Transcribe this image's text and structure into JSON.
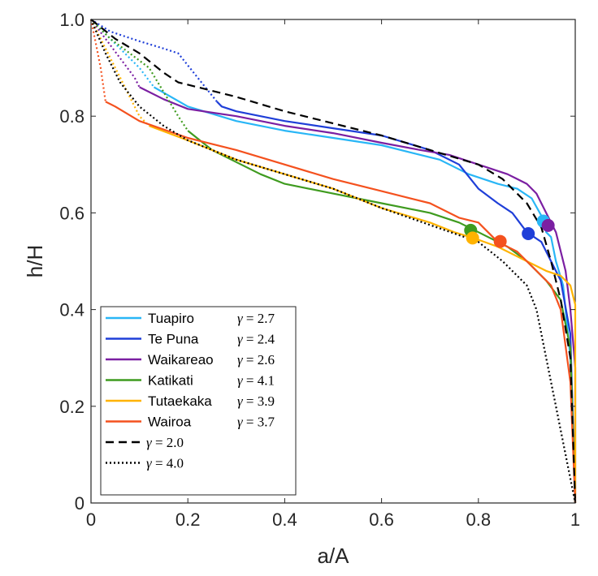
{
  "chart_data": {
    "type": "line",
    "xlabel": "a/A",
    "ylabel": "h/H",
    "xlim": [
      0,
      1
    ],
    "ylim": [
      0,
      1
    ],
    "xticks": [
      "0",
      "0.2",
      "0.4",
      "0.6",
      "0.8",
      "1"
    ],
    "yticks": [
      "0",
      "0.2",
      "0.4",
      "0.6",
      "0.8",
      "1.0"
    ],
    "grid": false,
    "legend_position": "bottom-left",
    "series": [
      {
        "name": "Tuapiro",
        "gamma_label": "= 2.7",
        "color": "#29b6f6",
        "style": "solid",
        "dotted": [
          [
            0,
            1
          ],
          [
            0.03,
            0.97
          ],
          [
            0.07,
            0.93
          ],
          [
            0.1,
            0.9
          ],
          [
            0.13,
            0.86
          ]
        ],
        "solid": [
          [
            0.13,
            0.86
          ],
          [
            0.2,
            0.82
          ],
          [
            0.3,
            0.79
          ],
          [
            0.4,
            0.77
          ],
          [
            0.5,
            0.755
          ],
          [
            0.6,
            0.74
          ],
          [
            0.68,
            0.72
          ],
          [
            0.72,
            0.71
          ],
          [
            0.78,
            0.68
          ],
          [
            0.84,
            0.66
          ],
          [
            0.88,
            0.65
          ],
          [
            0.91,
            0.63
          ],
          [
            0.935,
            0.585
          ],
          [
            0.94,
            0.56
          ],
          [
            0.95,
            0.55
          ],
          [
            0.96,
            0.5
          ],
          [
            0.975,
            0.45
          ],
          [
            0.99,
            0.3
          ],
          [
            1,
            0
          ]
        ],
        "marker": [
          0.934,
          0.583
        ]
      },
      {
        "name": "Te Puna",
        "gamma_label": "= 2.4",
        "color": "#1f3fd8",
        "style": "solid",
        "dotted": [
          [
            0,
            1
          ],
          [
            0.04,
            0.975
          ],
          [
            0.1,
            0.955
          ],
          [
            0.15,
            0.94
          ],
          [
            0.18,
            0.93
          ],
          [
            0.22,
            0.88
          ],
          [
            0.26,
            0.83
          ]
        ],
        "solid": [
          [
            0.26,
            0.83
          ],
          [
            0.27,
            0.82
          ],
          [
            0.3,
            0.81
          ],
          [
            0.4,
            0.79
          ],
          [
            0.5,
            0.775
          ],
          [
            0.6,
            0.76
          ],
          [
            0.7,
            0.73
          ],
          [
            0.76,
            0.7
          ],
          [
            0.8,
            0.65
          ],
          [
            0.84,
            0.62
          ],
          [
            0.87,
            0.6
          ],
          [
            0.9,
            0.56
          ],
          [
            0.93,
            0.54
          ],
          [
            0.95,
            0.5
          ],
          [
            0.97,
            0.46
          ],
          [
            0.99,
            0.35
          ],
          [
            1,
            0
          ]
        ],
        "marker": [
          0.903,
          0.557
        ]
      },
      {
        "name": "Waikareao",
        "gamma_label": "= 2.6",
        "color": "#7b1fa2",
        "style": "solid",
        "dotted": [
          [
            0,
            1
          ],
          [
            0.03,
            0.96
          ],
          [
            0.06,
            0.92
          ],
          [
            0.09,
            0.88
          ],
          [
            0.1,
            0.86
          ]
        ],
        "solid": [
          [
            0.1,
            0.86
          ],
          [
            0.15,
            0.835
          ],
          [
            0.2,
            0.815
          ],
          [
            0.3,
            0.8
          ],
          [
            0.4,
            0.78
          ],
          [
            0.5,
            0.765
          ],
          [
            0.6,
            0.745
          ],
          [
            0.68,
            0.73
          ],
          [
            0.74,
            0.72
          ],
          [
            0.8,
            0.7
          ],
          [
            0.86,
            0.68
          ],
          [
            0.9,
            0.66
          ],
          [
            0.92,
            0.64
          ],
          [
            0.94,
            0.6
          ],
          [
            0.96,
            0.56
          ],
          [
            0.98,
            0.48
          ],
          [
            0.99,
            0.4
          ],
          [
            1,
            0.28
          ],
          [
            1,
            0
          ]
        ],
        "marker": [
          0.944,
          0.574
        ]
      },
      {
        "name": "Katikati",
        "gamma_label": "= 4.1",
        "color": "#3f9b1f",
        "style": "solid",
        "dotted": [
          [
            0,
            1
          ],
          [
            0.04,
            0.96
          ],
          [
            0.08,
            0.93
          ],
          [
            0.12,
            0.9
          ],
          [
            0.15,
            0.85
          ],
          [
            0.18,
            0.8
          ],
          [
            0.2,
            0.77
          ]
        ],
        "solid": [
          [
            0.2,
            0.77
          ],
          [
            0.25,
            0.73
          ],
          [
            0.3,
            0.705
          ],
          [
            0.35,
            0.68
          ],
          [
            0.4,
            0.66
          ],
          [
            0.5,
            0.64
          ],
          [
            0.6,
            0.62
          ],
          [
            0.7,
            0.6
          ],
          [
            0.76,
            0.58
          ],
          [
            0.8,
            0.56
          ],
          [
            0.86,
            0.53
          ],
          [
            0.9,
            0.5
          ],
          [
            0.94,
            0.46
          ],
          [
            0.97,
            0.42
          ],
          [
            0.99,
            0.32
          ],
          [
            1,
            0
          ]
        ],
        "marker": [
          0.784,
          0.564
        ]
      },
      {
        "name": "Tutaekaka",
        "gamma_label": "= 3.9",
        "color": "#ffb300",
        "style": "solid",
        "dotted": [
          [
            0,
            1
          ],
          [
            0.02,
            0.96
          ],
          [
            0.04,
            0.92
          ],
          [
            0.06,
            0.88
          ],
          [
            0.08,
            0.84
          ],
          [
            0.1,
            0.8
          ],
          [
            0.12,
            0.78
          ]
        ],
        "solid": [
          [
            0.12,
            0.78
          ],
          [
            0.2,
            0.75
          ],
          [
            0.3,
            0.71
          ],
          [
            0.4,
            0.68
          ],
          [
            0.5,
            0.65
          ],
          [
            0.6,
            0.61
          ],
          [
            0.7,
            0.58
          ],
          [
            0.75,
            0.56
          ],
          [
            0.79,
            0.548
          ],
          [
            0.84,
            0.53
          ],
          [
            0.9,
            0.5
          ],
          [
            0.94,
            0.48
          ],
          [
            0.97,
            0.47
          ],
          [
            0.99,
            0.45
          ],
          [
            1,
            0.41
          ],
          [
            1,
            0
          ]
        ],
        "marker": [
          0.788,
          0.548
        ]
      },
      {
        "name": "Wairoa",
        "gamma_label": "= 3.7",
        "color": "#f4511e",
        "style": "solid",
        "dotted": [
          [
            0,
            1
          ],
          [
            0.01,
            0.95
          ],
          [
            0.02,
            0.9
          ],
          [
            0.03,
            0.83
          ]
        ],
        "solid": [
          [
            0.03,
            0.83
          ],
          [
            0.05,
            0.82
          ],
          [
            0.1,
            0.79
          ],
          [
            0.2,
            0.755
          ],
          [
            0.3,
            0.73
          ],
          [
            0.4,
            0.7
          ],
          [
            0.5,
            0.67
          ],
          [
            0.6,
            0.645
          ],
          [
            0.7,
            0.62
          ],
          [
            0.76,
            0.59
          ],
          [
            0.8,
            0.58
          ],
          [
            0.84,
            0.54
          ],
          [
            0.88,
            0.52
          ],
          [
            0.92,
            0.48
          ],
          [
            0.95,
            0.45
          ],
          [
            0.97,
            0.4
          ],
          [
            0.99,
            0.25
          ],
          [
            1,
            0
          ]
        ],
        "marker": [
          0.845,
          0.541
        ]
      },
      {
        "name": "= 2.0",
        "gamma_label": "",
        "color": "#000000",
        "style": "dashed",
        "solid": [
          [
            0,
            1
          ],
          [
            0.05,
            0.96
          ],
          [
            0.1,
            0.93
          ],
          [
            0.15,
            0.89
          ],
          [
            0.18,
            0.87
          ],
          [
            0.22,
            0.86
          ],
          [
            0.3,
            0.84
          ],
          [
            0.4,
            0.81
          ],
          [
            0.5,
            0.785
          ],
          [
            0.6,
            0.76
          ],
          [
            0.7,
            0.73
          ],
          [
            0.8,
            0.7
          ],
          [
            0.85,
            0.67
          ],
          [
            0.9,
            0.62
          ],
          [
            0.93,
            0.57
          ],
          [
            0.95,
            0.5
          ],
          [
            0.97,
            0.42
          ],
          [
            0.98,
            0.36
          ],
          [
            0.99,
            0.3
          ],
          [
            1,
            0
          ]
        ]
      },
      {
        "name": "= 4.0",
        "gamma_label": "",
        "color": "#000000",
        "style": "dotted",
        "solid": [
          [
            0,
            1
          ],
          [
            0.03,
            0.93
          ],
          [
            0.06,
            0.87
          ],
          [
            0.1,
            0.82
          ],
          [
            0.15,
            0.78
          ],
          [
            0.2,
            0.75
          ],
          [
            0.3,
            0.71
          ],
          [
            0.4,
            0.68
          ],
          [
            0.5,
            0.65
          ],
          [
            0.6,
            0.61
          ],
          [
            0.7,
            0.575
          ],
          [
            0.8,
            0.54
          ],
          [
            0.85,
            0.5
          ],
          [
            0.9,
            0.45
          ],
          [
            0.92,
            0.4
          ],
          [
            0.94,
            0.3
          ],
          [
            0.96,
            0.2
          ],
          [
            0.98,
            0.1
          ],
          [
            1,
            0
          ]
        ]
      }
    ]
  }
}
